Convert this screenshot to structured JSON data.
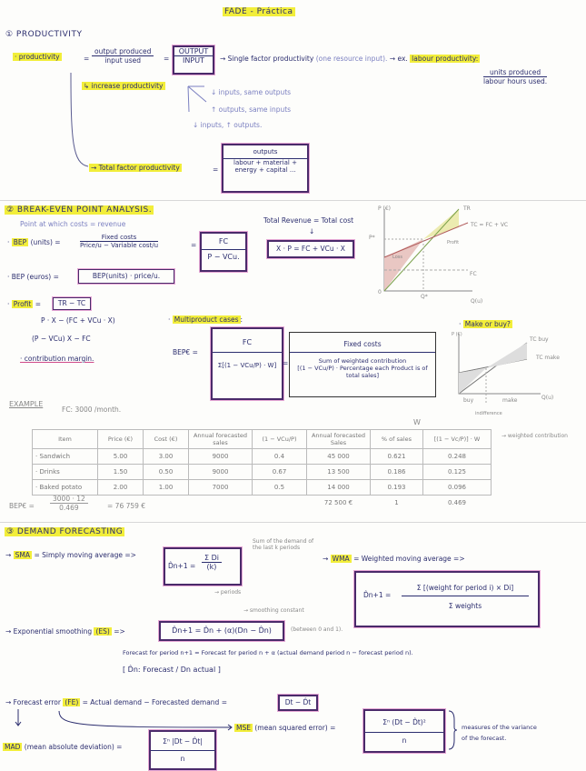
{
  "title": "FADE - Práctica",
  "productivity": {
    "heading": "① PRODUCTIVITY",
    "term": "· productivity",
    "eq": "=",
    "num": "output produced",
    "den": "input used",
    "box_num": "OUTPUT",
    "box_den": "INPUT",
    "single": "→ Single factor productivity",
    "single_note": "(one resource input).",
    "ex": "→ ex.",
    "labour": "labour productivity:",
    "labour_num": "units produced",
    "labour_den": "labour hours used.",
    "increase": "↳ increase productivity",
    "ways": [
      "↓ inputs, same outputs",
      "↑ outputs, same inputs",
      "↓ inputs, ↑ outputs."
    ],
    "total": "→ Total factor productivity",
    "total_num": "outputs",
    "total_den1": "labour + material +",
    "total_den2": "energy + capital ..."
  },
  "breakeven": {
    "heading": "② BREAK-EVEN POINT ANALYSIS.",
    "sub": "Point at which costs = revenue",
    "bep_units": "BEP",
    "bep_units_rest": "(units) =",
    "bu_num": "Fixed costs",
    "bu_den": "Price/u − Variable cost/u",
    "bu_box_num": "FC",
    "bu_box_den": "P − VCu.",
    "tr_tc": "Total Revenue = Total cost",
    "down": "↓",
    "tr_box": "X · P = FC + VCu · X",
    "bep_euros": "· BEP (euros) =",
    "bep_euros_box": "BEP(units) · price/u.",
    "profit": "Profit",
    "profit_box": "TR − TC",
    "p1": "P · X − (FC + VCu · X)",
    "p2": "(P − VCu) X − FC",
    "cm": "· contribution margin.",
    "chart": {
      "y": "P (€)",
      "tr": "TR",
      "tc": "TC = FC + VC",
      "profit": "Profit",
      "loss": "Loss",
      "fc": "FC",
      "x": "Q(u)",
      "q": "Q*",
      "p": "P*",
      "o": "0"
    },
    "multi": "Multiproduct cases",
    "multi_colon": ":",
    "bepe": "BEP€ =",
    "m_num": "FC",
    "m_den": "Σ[(1 − VCu/P) · W]",
    "m2_num": "Fixed costs",
    "m2_den1": "Sum of weighted contribution",
    "m2_den2": "[(1 − VCu/P) · Percentage each Product is of total sales]",
    "make": "Make or buy?",
    "mb": {
      "y": "P (€)",
      "buy_line": "TC buy",
      "make_line": "TC make",
      "buy": "buy",
      "make": "make",
      "x": "Q(u)",
      "ind": "indifference"
    }
  },
  "example": {
    "label": "EXAMPLE",
    "fc": "FC: 3000 /month.",
    "w": "W",
    "headers": [
      "Item",
      "Price (€)",
      "Cost (€)",
      "Annual forecasted sales",
      "(1 − VCu/P)",
      "Annual forecasted Sales",
      "% of sales",
      "[(1 − Vc/P)] · W"
    ],
    "rows": [
      [
        "· Sandwich",
        "5.00",
        "3.00",
        "9000",
        "0.4",
        "45 000",
        "0.621",
        "0.248"
      ],
      [
        "· Drinks",
        "1.50",
        "0.50",
        "9000",
        "0.67",
        "13 500",
        "0.186",
        "0.125"
      ],
      [
        "· Baked potato",
        "2.00",
        "1.00",
        "7000",
        "0.5",
        "14 000",
        "0.193",
        "0.096"
      ]
    ],
    "totals": [
      "72 500 €",
      "1",
      "0.469"
    ],
    "weighted": "→ weighted contribution",
    "bep_lhs": "BEP€ =",
    "bep_num": "3000 · 12",
    "bep_den": "0.469",
    "bep_res": "= 76 759 €"
  },
  "forecast": {
    "heading": "③ DEMAND FORECASTING",
    "sma": "SMA",
    "sma_def": "= Simply moving average =>",
    "sma_lhs": "D̂n+1 =",
    "sma_num": "Σ Di",
    "sma_den": "(k)",
    "sma_note": "Sum of the demand of the last k periods",
    "periods": "→ periods",
    "wma": "WMA",
    "wma_def": "= Weighted moving average =>",
    "wma_lhs": "D̂n+1 =",
    "wma_num": "Σ [(weight for period i) × Di]",
    "wma_den": "Σ weights",
    "es": "(ES)",
    "es_def": "→ Exponential smoothing",
    "es_arrow": "=>",
    "es_box": "D̂n+1 = D̂n + (α)(Dn − D̂n)",
    "alpha_note": "→ smoothing constant",
    "alpha_range": "(between 0 and 1).",
    "es_words": "Forecast for period n+1 = Forecast for period n + α (actual demand period n − forecast period n).",
    "es_legend": "[ D̂n: Forecast / Dn actual ]",
    "fe_pre": "→ Forecast error",
    "fe": "(FE)",
    "fe_def": "= Actual demand − Forecasted demand =",
    "fe_box": "Dt − D̂t",
    "mse": "MSE",
    "mse_def": "(mean squared error) =",
    "mse_num": "Σⁿ (Dt − D̂t)²",
    "mse_den": "n",
    "mad": "MAD",
    "mad_def": "(mean absolute deviation) =",
    "mad_num": "Σⁿ |Dt − D̂t|",
    "mad_den": "n",
    "measures": "measures of the variance",
    "measures2": "of the forecast."
  },
  "colors": {
    "highlight": "#f2ee3a",
    "ink": "#2b2d6e",
    "box": "#4a2a6a",
    "box_glow": "#e6a8d6"
  }
}
